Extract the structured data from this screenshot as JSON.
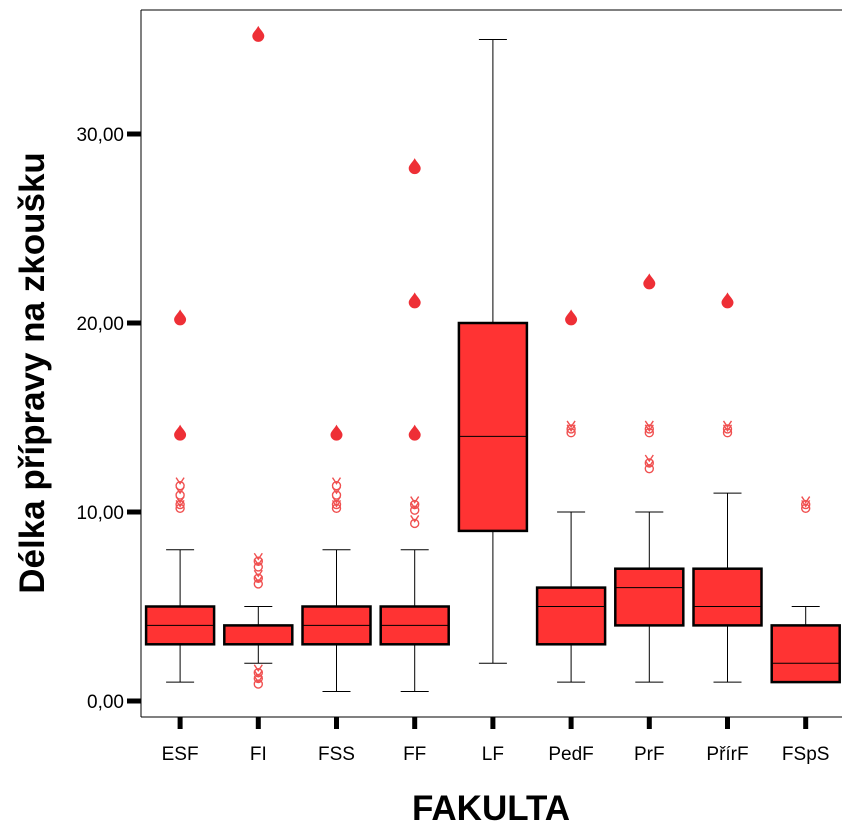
{
  "chart_data": {
    "type": "boxplot",
    "xlabel": "FAKULTA",
    "ylabel": "Délka přípravy na zkoušku",
    "ylim": [
      0,
      36
    ],
    "yticks": [
      "0,00",
      "10,00",
      "20,00",
      "30,00"
    ],
    "ytick_values": [
      0,
      10,
      20,
      30
    ],
    "box_color": "#ff3333",
    "categories": [
      "ESF",
      "FI",
      "FSS",
      "FF",
      "LF",
      "PedF",
      "PrF",
      "PřírF",
      "FSpS"
    ],
    "boxes": [
      {
        "category": "ESF",
        "whisker_low": 1,
        "q1": 3,
        "median": 4,
        "q3": 5,
        "whisker_high": 8,
        "outliers": [
          10.3,
          10.5,
          11,
          11.5
        ],
        "extremes": [
          14.2,
          20.3
        ]
      },
      {
        "category": "FI",
        "whisker_low": 2,
        "q1": 3,
        "median": 3,
        "q3": 4,
        "whisker_high": 5,
        "outliers": [
          1,
          1.3,
          1.6,
          6.3,
          6.6,
          7.2,
          7.5
        ],
        "extremes": [
          35.3
        ]
      },
      {
        "category": "FSS",
        "whisker_low": 0.5,
        "q1": 3,
        "median": 4,
        "q3": 5,
        "whisker_high": 8,
        "outliers": [
          10.3,
          10.5,
          11,
          11.5
        ],
        "extremes": [
          14.2
        ]
      },
      {
        "category": "FF",
        "whisker_low": 0.5,
        "q1": 3,
        "median": 4,
        "q3": 5,
        "whisker_high": 8,
        "outliers": [
          9.5,
          10.2,
          10.5
        ],
        "extremes": [
          14.2,
          21.2,
          28.3
        ]
      },
      {
        "category": "LF",
        "whisker_low": 2,
        "q1": 9,
        "median": 14,
        "q3": 20,
        "whisker_high": 35,
        "outliers": [],
        "extremes": []
      },
      {
        "category": "PedF",
        "whisker_low": 1,
        "q1": 3,
        "median": 5,
        "q3": 6,
        "whisker_high": 10,
        "outliers": [
          14.3,
          14.5
        ],
        "extremes": [
          20.3
        ]
      },
      {
        "category": "PrF",
        "whisker_low": 1,
        "q1": 4,
        "median": 6,
        "q3": 7,
        "whisker_high": 10,
        "outliers": [
          12.4,
          12.7,
          14.3,
          14.5
        ],
        "extremes": [
          22.2
        ]
      },
      {
        "category": "PřírF",
        "whisker_low": 1,
        "q1": 4,
        "median": 5,
        "q3": 7,
        "whisker_high": 11,
        "outliers": [
          14.3,
          14.5
        ],
        "extremes": [
          21.2
        ]
      },
      {
        "category": "FSpS",
        "whisker_low": 1,
        "q1": 1,
        "median": 2,
        "q3": 4,
        "whisker_high": 5,
        "outliers": [
          10.3,
          10.5
        ],
        "extremes": []
      }
    ]
  }
}
